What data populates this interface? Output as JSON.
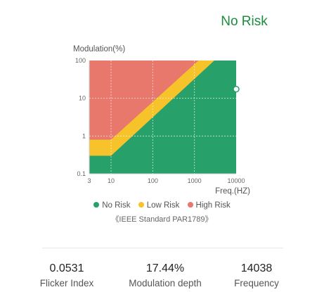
{
  "status": {
    "label": "No Risk",
    "color": "#1e8a3e"
  },
  "chart_data": {
    "type": "area",
    "ylabel": "Modulation(%)",
    "xlabel": "Freq.(HZ)",
    "x_scale": "log",
    "y_scale": "log",
    "x_ticks": [
      "3",
      "10",
      "100",
      "1000",
      "10000"
    ],
    "x_tick_values": [
      3,
      10,
      100,
      1000,
      10000
    ],
    "y_ticks": [
      "0.1",
      "1",
      "10",
      "100"
    ],
    "y_tick_values": [
      0.1,
      1,
      10,
      100
    ],
    "xlim": [
      3,
      10000
    ],
    "ylim": [
      0.1,
      100
    ],
    "grid": true,
    "regions": [
      {
        "name": "No Risk",
        "color": "#27a06a",
        "boundary": [
          {
            "x": 3,
            "y": 0.3
          },
          {
            "x": 10,
            "y": 0.3
          },
          {
            "x": 3000,
            "y": 100
          }
        ]
      },
      {
        "name": "Low Risk",
        "color": "#f6c32b",
        "boundary": [
          {
            "x": 3,
            "y": 0.8
          },
          {
            "x": 10,
            "y": 0.8
          },
          {
            "x": 1250,
            "y": 100
          }
        ]
      },
      {
        "name": "High Risk",
        "color": "#e7786b"
      }
    ],
    "marker": {
      "x": 10000,
      "y": 17.44
    }
  },
  "legend": [
    {
      "label": "No Risk",
      "color": "#27a06a"
    },
    {
      "label": "Low Risk",
      "color": "#f6c32b"
    },
    {
      "label": "High Risk",
      "color": "#e7786b"
    }
  ],
  "standard_note": "《IEEE Standard PAR1789》",
  "metrics": [
    {
      "value": "0.0531",
      "label": "Flicker Index"
    },
    {
      "value": "17.44%",
      "label": "Modulation depth"
    },
    {
      "value": "14038",
      "label": "Frequency"
    }
  ]
}
